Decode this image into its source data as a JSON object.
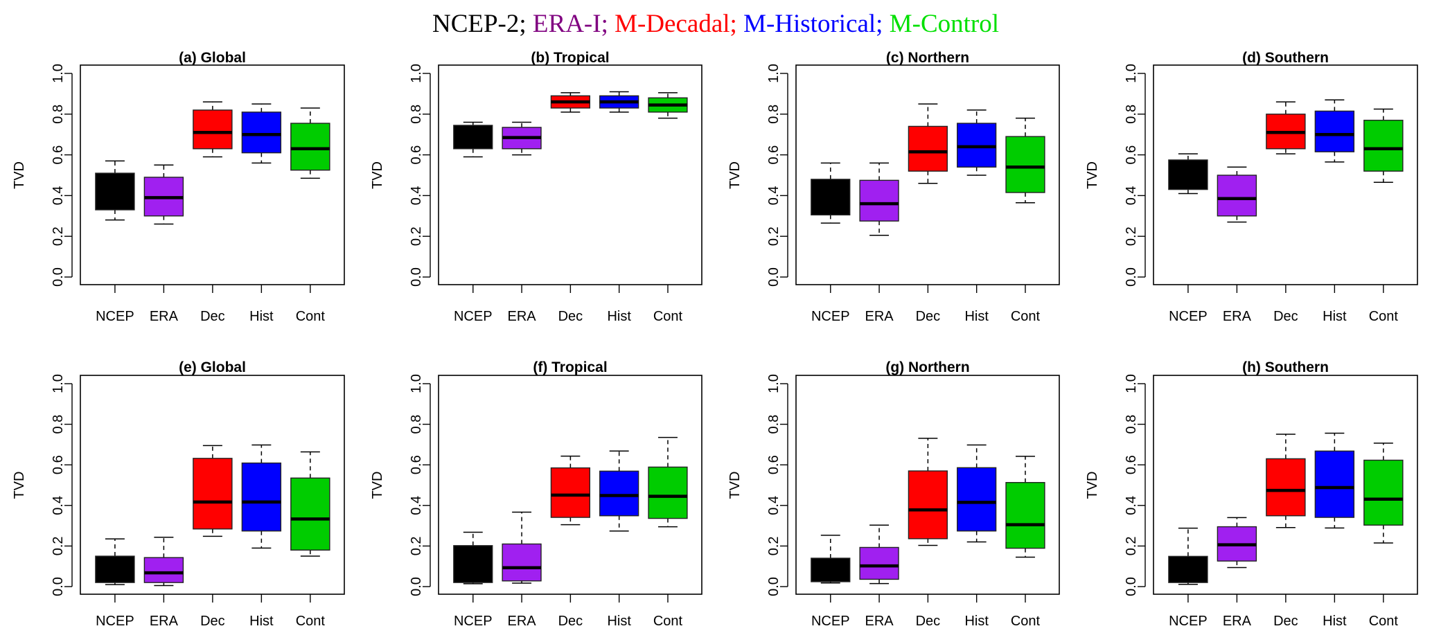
{
  "figure": {
    "title_parts": [
      {
        "text": "NCEP-2;",
        "color": "#000000"
      },
      {
        "text": "ERA-I;",
        "color": "#800080"
      },
      {
        "text": "M-Decadal;",
        "color": "#ff0000"
      },
      {
        "text": "M-Historical;",
        "color": "#0000ff"
      },
      {
        "text": "M-Control",
        "color": "#00e000"
      }
    ]
  },
  "chart_data": [
    {
      "type": "boxplot",
      "title": "(a) Global",
      "ylabel": "TVD",
      "ylim": [
        0,
        1
      ],
      "yticks": [
        "0.0",
        "0.2",
        "0.4",
        "0.6",
        "0.8",
        "1.0"
      ],
      "categories": [
        "NCEP",
        "ERA",
        "Dec",
        "Hist",
        "Cont"
      ],
      "colors": [
        "#000000",
        "#a020f0",
        "#ff0000",
        "#0000ff",
        "#00cc00"
      ],
      "boxes": [
        {
          "min": 0.28,
          "q1": 0.33,
          "median": null,
          "q3": 0.51,
          "max": 0.57
        },
        {
          "min": 0.26,
          "q1": 0.3,
          "median": 0.39,
          "q3": 0.49,
          "max": 0.55
        },
        {
          "min": 0.59,
          "q1": 0.63,
          "median": 0.71,
          "q3": 0.82,
          "max": 0.86
        },
        {
          "min": 0.56,
          "q1": 0.61,
          "median": 0.7,
          "q3": 0.81,
          "max": 0.85
        },
        {
          "min": 0.485,
          "q1": 0.525,
          "median": 0.63,
          "q3": 0.755,
          "max": 0.83
        }
      ]
    },
    {
      "type": "boxplot",
      "title": "(b) Tropical",
      "ylabel": "TVD",
      "ylim": [
        0,
        1
      ],
      "yticks": [
        "0.0",
        "0.2",
        "0.4",
        "0.6",
        "0.8",
        "1.0"
      ],
      "categories": [
        "NCEP",
        "ERA",
        "Dec",
        "Hist",
        "Cont"
      ],
      "colors": [
        "#000000",
        "#a020f0",
        "#ff0000",
        "#0000ff",
        "#00cc00"
      ],
      "boxes": [
        {
          "min": 0.59,
          "q1": 0.63,
          "median": null,
          "q3": 0.745,
          "max": 0.76
        },
        {
          "min": 0.6,
          "q1": 0.63,
          "median": 0.685,
          "q3": 0.735,
          "max": 0.76
        },
        {
          "min": 0.81,
          "q1": 0.83,
          "median": 0.86,
          "q3": 0.89,
          "max": 0.905
        },
        {
          "min": 0.81,
          "q1": 0.83,
          "median": 0.86,
          "q3": 0.89,
          "max": 0.91
        },
        {
          "min": 0.78,
          "q1": 0.81,
          "median": 0.845,
          "q3": 0.88,
          "max": 0.905
        }
      ]
    },
    {
      "type": "boxplot",
      "title": "(c) Northern",
      "ylabel": "TVD",
      "ylim": [
        0,
        1
      ],
      "yticks": [
        "0.0",
        "0.2",
        "0.4",
        "0.6",
        "0.8",
        "1.0"
      ],
      "categories": [
        "NCEP",
        "ERA",
        "Dec",
        "Hist",
        "Cont"
      ],
      "colors": [
        "#000000",
        "#a020f0",
        "#ff0000",
        "#0000ff",
        "#00cc00"
      ],
      "boxes": [
        {
          "min": 0.265,
          "q1": 0.305,
          "median": null,
          "q3": 0.48,
          "max": 0.56
        },
        {
          "min": 0.205,
          "q1": 0.275,
          "median": 0.36,
          "q3": 0.475,
          "max": 0.56
        },
        {
          "min": 0.46,
          "q1": 0.52,
          "median": 0.615,
          "q3": 0.74,
          "max": 0.85
        },
        {
          "min": 0.5,
          "q1": 0.54,
          "median": 0.64,
          "q3": 0.755,
          "max": 0.82
        },
        {
          "min": 0.365,
          "q1": 0.415,
          "median": 0.54,
          "q3": 0.69,
          "max": 0.78
        }
      ]
    },
    {
      "type": "boxplot",
      "title": "(d) Southern",
      "ylabel": "TVD",
      "ylim": [
        0,
        1
      ],
      "yticks": [
        "0.0",
        "0.2",
        "0.4",
        "0.6",
        "0.8",
        "1.0"
      ],
      "categories": [
        "NCEP",
        "ERA",
        "Dec",
        "Hist",
        "Cont"
      ],
      "colors": [
        "#000000",
        "#a020f0",
        "#ff0000",
        "#0000ff",
        "#00cc00"
      ],
      "boxes": [
        {
          "min": 0.41,
          "q1": 0.43,
          "median": null,
          "q3": 0.575,
          "max": 0.605
        },
        {
          "min": 0.27,
          "q1": 0.3,
          "median": 0.385,
          "q3": 0.5,
          "max": 0.54
        },
        {
          "min": 0.605,
          "q1": 0.63,
          "median": 0.71,
          "q3": 0.8,
          "max": 0.86
        },
        {
          "min": 0.565,
          "q1": 0.615,
          "median": 0.7,
          "q3": 0.815,
          "max": 0.87
        },
        {
          "min": 0.465,
          "q1": 0.52,
          "median": 0.63,
          "q3": 0.77,
          "max": 0.825
        }
      ]
    },
    {
      "type": "boxplot",
      "title": "(e) Global",
      "ylabel": "TVD",
      "ylim": [
        0,
        1
      ],
      "yticks": [
        "0.0",
        "0.2",
        "0.4",
        "0.6",
        "0.8",
        "1.0"
      ],
      "categories": [
        "NCEP",
        "ERA",
        "Dec",
        "Hist",
        "Cont"
      ],
      "colors": [
        "#000000",
        "#a020f0",
        "#ff0000",
        "#0000ff",
        "#00cc00"
      ],
      "boxes": [
        {
          "min": 0.01,
          "q1": 0.02,
          "median": null,
          "q3": 0.15,
          "max": 0.235
        },
        {
          "min": 0.005,
          "q1": 0.02,
          "median": 0.068,
          "q3": 0.143,
          "max": 0.243
        },
        {
          "min": 0.248,
          "q1": 0.284,
          "median": 0.417,
          "q3": 0.632,
          "max": 0.695
        },
        {
          "min": 0.19,
          "q1": 0.274,
          "median": 0.417,
          "q3": 0.609,
          "max": 0.698
        },
        {
          "min": 0.15,
          "q1": 0.18,
          "median": 0.333,
          "q3": 0.535,
          "max": 0.664
        }
      ]
    },
    {
      "type": "boxplot",
      "title": "(f) Tropical",
      "ylabel": "TVD",
      "ylim": [
        0,
        1
      ],
      "yticks": [
        "0.0",
        "0.2",
        "0.4",
        "0.6",
        "0.8",
        "1.0"
      ],
      "categories": [
        "NCEP",
        "ERA",
        "Dec",
        "Hist",
        "Cont"
      ],
      "colors": [
        "#000000",
        "#a020f0",
        "#ff0000",
        "#0000ff",
        "#00cc00"
      ],
      "boxes": [
        {
          "min": 0.014,
          "q1": 0.02,
          "median": null,
          "q3": 0.202,
          "max": 0.268
        },
        {
          "min": 0.017,
          "q1": 0.028,
          "median": 0.093,
          "q3": 0.21,
          "max": 0.367
        },
        {
          "min": 0.305,
          "q1": 0.341,
          "median": 0.451,
          "q3": 0.585,
          "max": 0.643
        },
        {
          "min": 0.274,
          "q1": 0.349,
          "median": 0.449,
          "q3": 0.569,
          "max": 0.668
        },
        {
          "min": 0.295,
          "q1": 0.336,
          "median": 0.445,
          "q3": 0.589,
          "max": 0.735
        }
      ]
    },
    {
      "type": "boxplot",
      "title": "(g) Northern",
      "ylabel": "TVD",
      "ylim": [
        0,
        1
      ],
      "yticks": [
        "0.0",
        "0.2",
        "0.4",
        "0.6",
        "0.8",
        "1.0"
      ],
      "categories": [
        "NCEP",
        "ERA",
        "Dec",
        "Hist",
        "Cont"
      ],
      "colors": [
        "#000000",
        "#a020f0",
        "#ff0000",
        "#0000ff",
        "#00cc00"
      ],
      "boxes": [
        {
          "min": 0.018,
          "q1": 0.024,
          "median": null,
          "q3": 0.14,
          "max": 0.253
        },
        {
          "min": 0.015,
          "q1": 0.036,
          "median": 0.102,
          "q3": 0.193,
          "max": 0.303
        },
        {
          "min": 0.203,
          "q1": 0.236,
          "median": 0.378,
          "q3": 0.57,
          "max": 0.731
        },
        {
          "min": 0.22,
          "q1": 0.274,
          "median": 0.415,
          "q3": 0.586,
          "max": 0.698
        },
        {
          "min": 0.145,
          "q1": 0.189,
          "median": 0.305,
          "q3": 0.513,
          "max": 0.642
        }
      ]
    },
    {
      "type": "boxplot",
      "title": "(h) Southern",
      "ylabel": "TVD",
      "ylim": [
        0,
        1
      ],
      "yticks": [
        "0.0",
        "0.2",
        "0.4",
        "0.6",
        "0.8",
        "1.0"
      ],
      "categories": [
        "NCEP",
        "ERA",
        "Dec",
        "Hist",
        "Cont"
      ],
      "colors": [
        "#000000",
        "#a020f0",
        "#ff0000",
        "#0000ff",
        "#00cc00"
      ],
      "boxes": [
        {
          "min": 0.011,
          "q1": 0.02,
          "median": null,
          "q3": 0.149,
          "max": 0.288
        },
        {
          "min": 0.094,
          "q1": 0.126,
          "median": 0.206,
          "q3": 0.295,
          "max": 0.34
        },
        {
          "min": 0.291,
          "q1": 0.349,
          "median": 0.474,
          "q3": 0.63,
          "max": 0.751
        },
        {
          "min": 0.289,
          "q1": 0.341,
          "median": 0.488,
          "q3": 0.668,
          "max": 0.756
        },
        {
          "min": 0.215,
          "q1": 0.303,
          "median": 0.431,
          "q3": 0.623,
          "max": 0.707
        }
      ]
    }
  ]
}
